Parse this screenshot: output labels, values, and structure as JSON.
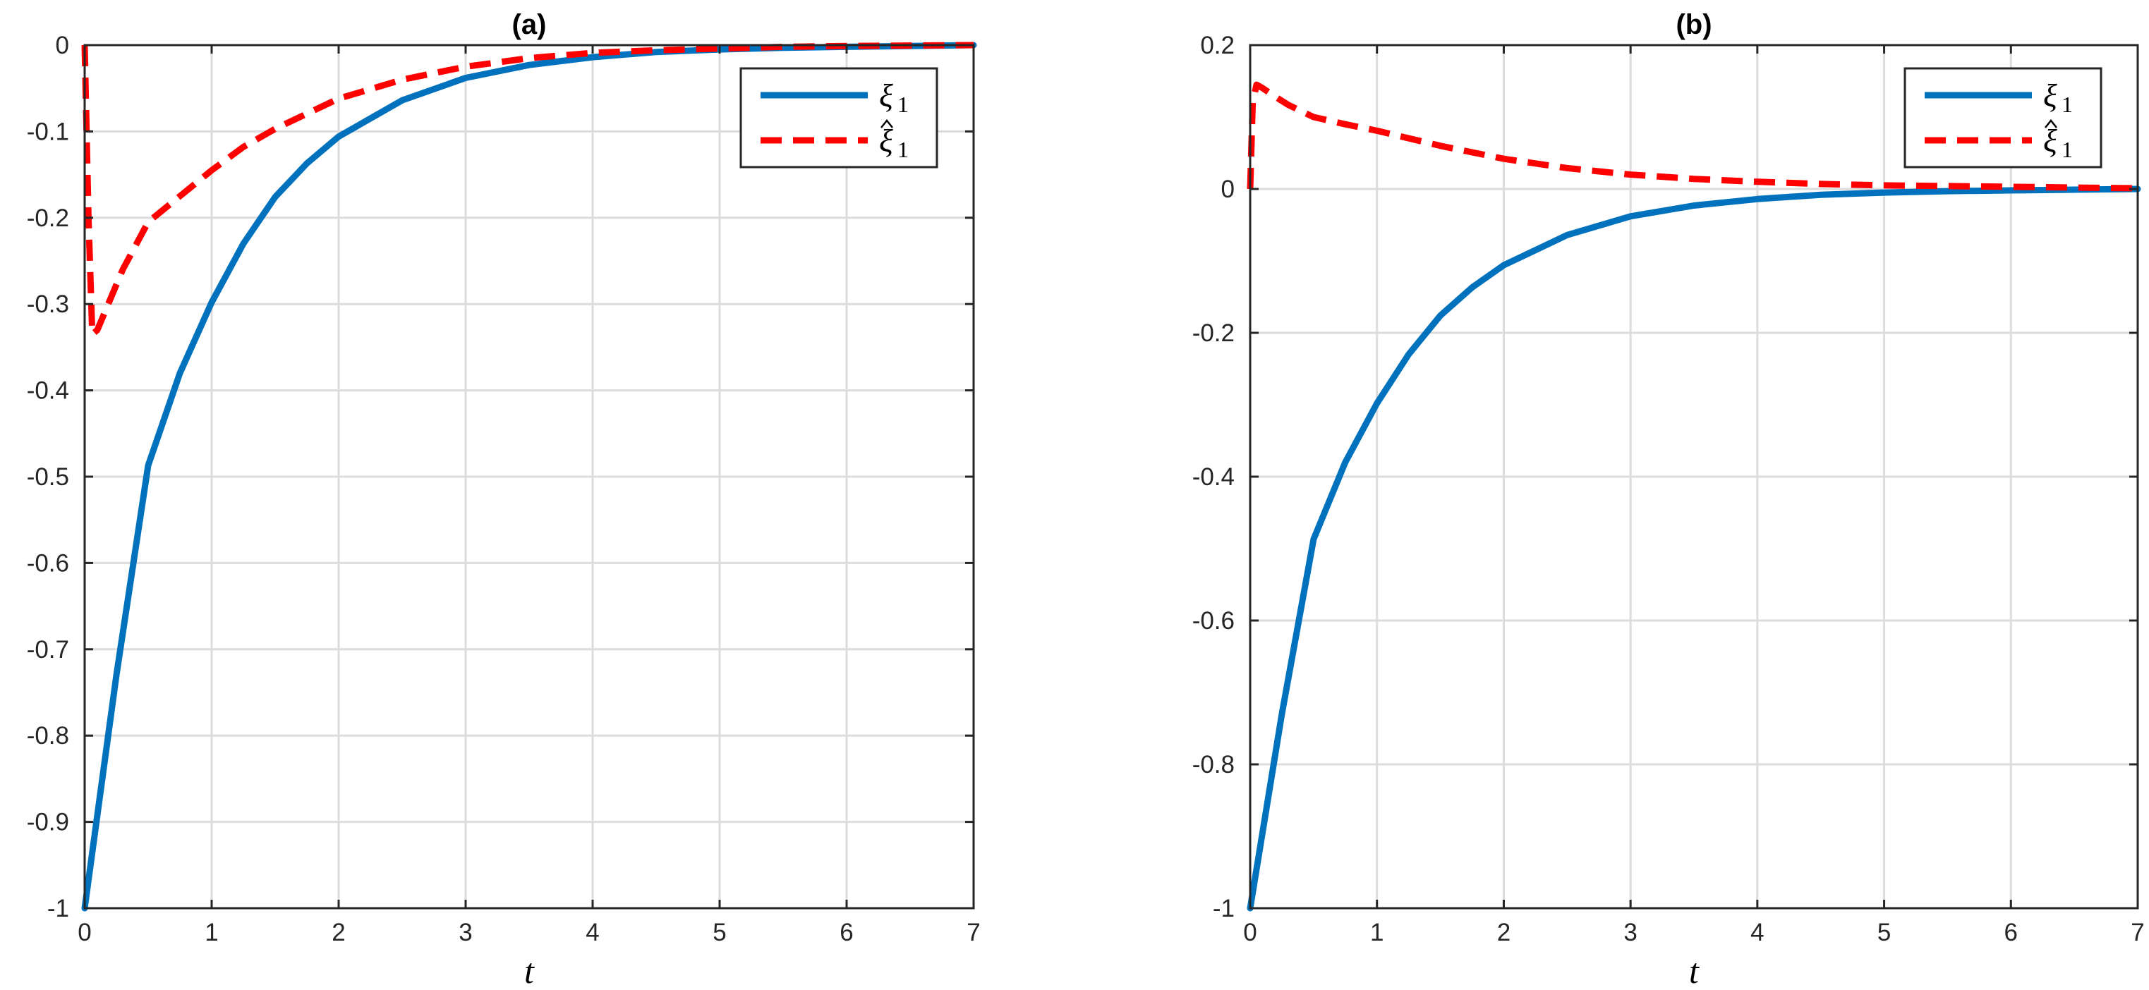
{
  "figure": {
    "background": "#ffffff"
  },
  "chart_data": [
    {
      "type": "line",
      "title": "(a)",
      "xlabel": "t",
      "ylabel": "",
      "xlim": [
        0,
        7
      ],
      "ylim": [
        -1,
        0
      ],
      "xticks": [
        0,
        1,
        2,
        3,
        4,
        5,
        6,
        7
      ],
      "xtick_labels": [
        "0",
        "1",
        "2",
        "3",
        "4",
        "5",
        "6",
        "7"
      ],
      "yticks": [
        0,
        -0.1,
        -0.2,
        -0.3,
        -0.4,
        -0.5,
        -0.6,
        -0.7,
        -0.8,
        -0.9,
        -1
      ],
      "ytick_labels": [
        "0",
        "-0.1",
        "-0.2",
        "-0.3",
        "-0.4",
        "-0.5",
        "-0.6",
        "-0.7",
        "-0.8",
        "-0.9",
        "-1"
      ],
      "grid": true,
      "legend_position": "top-right",
      "series": [
        {
          "name": "ξ",
          "subscript": "1",
          "hat": false,
          "color": "#0072BD",
          "style": "solid",
          "x": [
            0,
            0.25,
            0.5,
            0.75,
            1,
            1.25,
            1.5,
            1.75,
            2,
            2.5,
            3,
            3.5,
            4,
            4.5,
            5,
            5.5,
            6,
            6.5,
            7
          ],
          "y": [
            -1,
            -0.73,
            -0.487,
            -0.38,
            -0.298,
            -0.23,
            -0.176,
            -0.137,
            -0.106,
            -0.064,
            -0.038,
            -0.023,
            -0.014,
            -0.008,
            -0.005,
            -0.003,
            -0.002,
            -0.001,
            0
          ]
        },
        {
          "name": "ξ",
          "subscript": "1",
          "hat": true,
          "color": "#FF0000",
          "style": "dashed",
          "x": [
            0,
            0.03,
            0.06,
            0.1,
            0.2,
            0.3,
            0.5,
            0.75,
            1,
            1.25,
            1.5,
            2,
            2.5,
            3,
            3.5,
            4,
            4.5,
            5,
            5.5,
            6,
            6.5,
            7
          ],
          "y": [
            0,
            -0.2,
            -0.335,
            -0.33,
            -0.295,
            -0.26,
            -0.205,
            -0.175,
            -0.145,
            -0.118,
            -0.097,
            -0.062,
            -0.04,
            -0.025,
            -0.015,
            -0.009,
            -0.006,
            -0.004,
            -0.002,
            -0.001,
            -0.0005,
            0
          ]
        }
      ]
    },
    {
      "type": "line",
      "title": "(b)",
      "xlabel": "t",
      "ylabel": "",
      "xlim": [
        0,
        7
      ],
      "ylim": [
        -1,
        0.2
      ],
      "xticks": [
        0,
        1,
        2,
        3,
        4,
        5,
        6,
        7
      ],
      "xtick_labels": [
        "0",
        "1",
        "2",
        "3",
        "4",
        "5",
        "6",
        "7"
      ],
      "yticks": [
        0.2,
        0,
        -0.2,
        -0.4,
        -0.6,
        -0.8,
        -1
      ],
      "ytick_labels": [
        "0.2",
        "0",
        "-0.2",
        "-0.4",
        "-0.6",
        "-0.8",
        "-1"
      ],
      "grid": true,
      "legend_position": "top-right",
      "series": [
        {
          "name": "ξ",
          "subscript": "1",
          "hat": false,
          "color": "#0072BD",
          "style": "solid",
          "x": [
            0,
            0.25,
            0.5,
            0.75,
            1,
            1.25,
            1.5,
            1.75,
            2,
            2.5,
            3,
            3.5,
            4,
            4.5,
            5,
            5.5,
            6,
            6.5,
            7
          ],
          "y": [
            -1,
            -0.73,
            -0.487,
            -0.38,
            -0.298,
            -0.23,
            -0.176,
            -0.137,
            -0.106,
            -0.064,
            -0.038,
            -0.023,
            -0.014,
            -0.008,
            -0.005,
            -0.003,
            -0.002,
            -0.001,
            0
          ]
        },
        {
          "name": "ξ",
          "subscript": "1",
          "hat": true,
          "color": "#FF0000",
          "style": "dashed",
          "x": [
            0,
            0.02,
            0.05,
            0.1,
            0.2,
            0.3,
            0.5,
            0.75,
            1,
            1.5,
            2,
            2.5,
            3,
            3.5,
            4,
            4.5,
            5,
            5.5,
            6,
            6.5,
            7
          ],
          "y": [
            0,
            0.12,
            0.145,
            0.14,
            0.128,
            0.117,
            0.1,
            0.09,
            0.081,
            0.06,
            0.042,
            0.029,
            0.02,
            0.014,
            0.01,
            0.007,
            0.005,
            0.004,
            0.003,
            0.002,
            0.001
          ]
        }
      ]
    }
  ]
}
